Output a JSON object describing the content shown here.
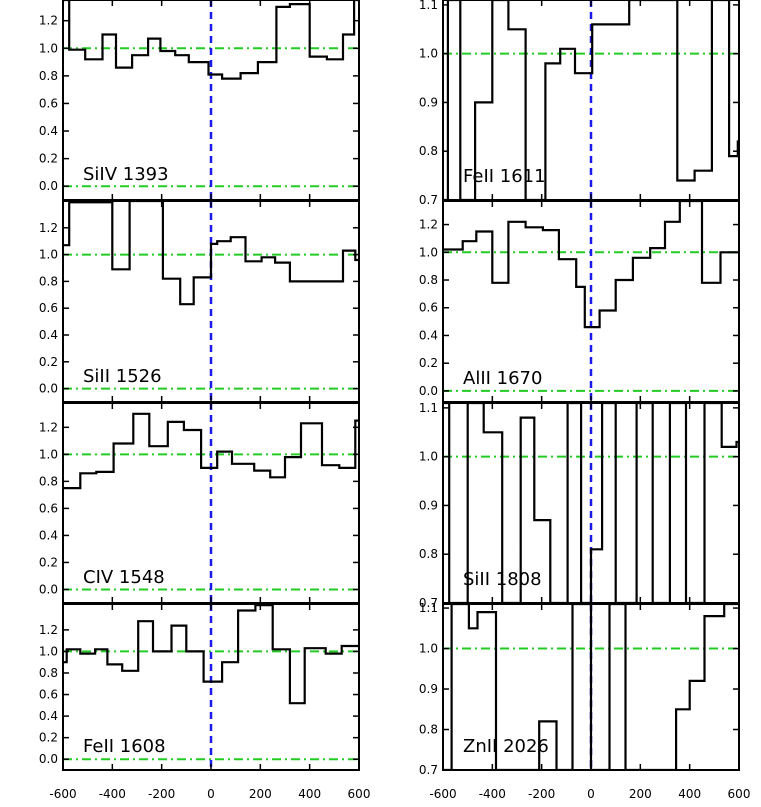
{
  "figure": {
    "x_ticks": [
      -600,
      -400,
      -200,
      0,
      200,
      400,
      600
    ],
    "x_tick_labels": [
      "-600",
      "-400",
      "-200",
      "0",
      "200",
      "400",
      "600"
    ]
  },
  "chart_data": [
    {
      "type": "line",
      "panel": "left-1",
      "label": "SiIV 1393",
      "xlim": [
        -600,
        600
      ],
      "ylim": [
        -0.1,
        1.35
      ],
      "y_ticks": [
        0.0,
        0.2,
        0.4,
        0.6,
        0.8,
        1.0,
        1.2
      ],
      "y_tick_labels": [
        "0.0",
        "0.2",
        "0.4",
        "0.6",
        "0.8",
        "1.0",
        "1.2"
      ],
      "continuum": 1.0,
      "zero_level": 0.0,
      "reference_velocity": 0,
      "x": [
        -600,
        -575,
        -510,
        -440,
        -385,
        -320,
        -255,
        -205,
        -145,
        -90,
        -10,
        45,
        120,
        190,
        265,
        320,
        400,
        470,
        535,
        580
      ],
      "y": [
        1.35,
        0.99,
        0.92,
        1.1,
        0.86,
        0.95,
        1.07,
        0.98,
        0.95,
        0.9,
        0.81,
        0.78,
        0.82,
        0.9,
        1.3,
        1.32,
        0.94,
        0.92,
        1.1,
        1.35
      ]
    },
    {
      "type": "line",
      "panel": "left-2",
      "label": "SiII 1526",
      "xlim": [
        -600,
        600
      ],
      "ylim": [
        -0.1,
        1.4
      ],
      "y_ticks": [
        0.0,
        0.2,
        0.4,
        0.6,
        0.8,
        1.0,
        1.2
      ],
      "y_tick_labels": [
        "0.0",
        "0.2",
        "0.4",
        "0.6",
        "0.8",
        "1.0",
        "1.2"
      ],
      "continuum": 1.0,
      "zero_level": 0.0,
      "reference_velocity": 0,
      "x": [
        -600,
        -575,
        -400,
        -330,
        -195,
        -125,
        -70,
        0,
        25,
        80,
        140,
        205,
        260,
        320,
        470,
        535,
        585
      ],
      "y": [
        1.07,
        1.39,
        0.89,
        1.4,
        0.82,
        0.63,
        0.83,
        1.08,
        1.1,
        1.13,
        0.95,
        0.98,
        0.94,
        0.8,
        0.8,
        1.03,
        0.96
      ]
    },
    {
      "type": "line",
      "panel": "left-3",
      "label": "CIV 1548",
      "xlim": [
        -600,
        600
      ],
      "ylim": [
        -0.1,
        1.38
      ],
      "y_ticks": [
        0.0,
        0.2,
        0.4,
        0.6,
        0.8,
        1.0,
        1.2
      ],
      "y_tick_labels": [
        "0.0",
        "0.2",
        "0.4",
        "0.6",
        "0.8",
        "1.0",
        "1.2"
      ],
      "continuum": 1.0,
      "zero_level": 0.0,
      "reference_velocity": 0,
      "x": [
        -600,
        -530,
        -465,
        -395,
        -315,
        -250,
        -175,
        -110,
        -40,
        25,
        85,
        175,
        240,
        300,
        365,
        450,
        520,
        585
      ],
      "y": [
        0.75,
        0.86,
        0.87,
        1.08,
        1.3,
        1.06,
        1.24,
        1.18,
        0.9,
        1.02,
        0.93,
        0.88,
        0.83,
        0.98,
        1.23,
        0.92,
        0.9,
        1.25
      ]
    },
    {
      "type": "line",
      "panel": "left-4",
      "label": "FeII 1608",
      "xlim": [
        -600,
        600
      ],
      "ylim": [
        -0.1,
        1.44
      ],
      "y_ticks": [
        0.0,
        0.2,
        0.4,
        0.6,
        0.8,
        1.0,
        1.2
      ],
      "y_tick_labels": [
        "0.0",
        "0.2",
        "0.4",
        "0.6",
        "0.8",
        "1.0",
        "1.2"
      ],
      "continuum": 1.0,
      "zero_level": 0.0,
      "reference_velocity": 0,
      "x": [
        -600,
        -585,
        -530,
        -470,
        -420,
        -360,
        -295,
        -235,
        -160,
        -100,
        -30,
        45,
        110,
        180,
        250,
        320,
        380,
        465,
        530,
        585
      ],
      "y": [
        0.9,
        1.02,
        0.98,
        1.02,
        0.88,
        0.82,
        1.28,
        1.0,
        1.24,
        1.0,
        0.72,
        0.9,
        1.38,
        1.43,
        1.02,
        0.52,
        1.03,
        0.98,
        1.05,
        1.05
      ]
    },
    {
      "type": "line",
      "panel": "right-1",
      "label": "FeII 1611",
      "xlim": [
        -600,
        600
      ],
      "ylim": [
        0.7,
        1.11
      ],
      "y_ticks": [
        0.7,
        0.8,
        0.9,
        1.0,
        1.1
      ],
      "y_tick_labels": [
        "0.7",
        "0.8",
        "0.9",
        "1.0",
        "1.1"
      ],
      "continuum": 1.0,
      "reference_velocity": 0,
      "x": [
        -600,
        -580,
        -530,
        -470,
        -400,
        -335,
        -265,
        -185,
        -125,
        -65,
        5,
        90,
        155,
        255,
        350,
        420,
        490,
        560,
        595
      ],
      "y": [
        0.7,
        1.11,
        0.7,
        0.9,
        1.11,
        1.05,
        0.7,
        0.98,
        1.01,
        0.96,
        1.06,
        1.06,
        1.11,
        1.11,
        0.74,
        0.76,
        1.11,
        0.79,
        0.82
      ]
    },
    {
      "type": "line",
      "panel": "right-2",
      "label": "AlII 1670",
      "xlim": [
        -600,
        600
      ],
      "ylim": [
        -0.08,
        1.37
      ],
      "y_ticks": [
        0.0,
        0.2,
        0.4,
        0.6,
        0.8,
        1.0,
        1.2
      ],
      "y_tick_labels": [
        "0.0",
        "0.2",
        "0.4",
        "0.6",
        "0.8",
        "1.0",
        "1.2"
      ],
      "continuum": 1.0,
      "zero_level": 0.0,
      "reference_velocity": 0,
      "x": [
        -600,
        -520,
        -465,
        -400,
        -335,
        -265,
        -195,
        -130,
        -60,
        -25,
        35,
        100,
        170,
        240,
        300,
        360,
        450,
        525,
        585
      ],
      "y": [
        1.02,
        1.08,
        1.15,
        0.78,
        1.22,
        1.18,
        1.16,
        0.95,
        0.75,
        0.46,
        0.58,
        0.8,
        0.96,
        1.03,
        1.22,
        1.37,
        0.78,
        1.0,
        1.0
      ]
    },
    {
      "type": "line",
      "panel": "right-3",
      "label": "SiII 1808",
      "xlim": [
        -600,
        600
      ],
      "ylim": [
        0.7,
        1.11
      ],
      "y_ticks": [
        0.7,
        0.8,
        0.9,
        1.0,
        1.1
      ],
      "y_tick_labels": [
        "0.7",
        "0.8",
        "0.9",
        "1.0",
        "1.1"
      ],
      "continuum": 1.0,
      "reference_velocity": 0,
      "x": [
        -600,
        -575,
        -500,
        -435,
        -360,
        -285,
        -230,
        -165,
        -95,
        -40,
        0,
        45,
        100,
        185,
        250,
        320,
        385,
        460,
        530,
        590
      ],
      "y": [
        1.11,
        0.7,
        1.11,
        1.05,
        0.7,
        1.08,
        0.87,
        0.7,
        1.11,
        0.7,
        0.81,
        1.11,
        0.7,
        1.11,
        0.7,
        1.11,
        0.7,
        1.11,
        1.02,
        1.03
      ]
    },
    {
      "type": "line",
      "panel": "right-4",
      "label": "ZnII 2026",
      "xlim": [
        -600,
        600
      ],
      "ylim": [
        0.7,
        1.11
      ],
      "y_ticks": [
        0.7,
        0.8,
        0.9,
        1.0,
        1.1
      ],
      "y_tick_labels": [
        "0.7",
        "0.8",
        "0.9",
        "1.0",
        "1.1"
      ],
      "continuum": 1.0,
      "reference_velocity": 0,
      "x": [
        -600,
        -565,
        -495,
        -460,
        -385,
        -210,
        -140,
        -75,
        0,
        75,
        140,
        270,
        345,
        400,
        460,
        540,
        590
      ],
      "y": [
        0.7,
        1.11,
        1.05,
        1.09,
        0.7,
        0.82,
        0.7,
        1.11,
        0.7,
        1.11,
        0.7,
        0.7,
        0.85,
        0.92,
        1.08,
        1.11,
        1.11
      ]
    }
  ],
  "colors": {
    "spectrum": "#000000",
    "continuum": "#22cc22",
    "reference_velocity": "#1a1aee",
    "axes": "#000000"
  }
}
